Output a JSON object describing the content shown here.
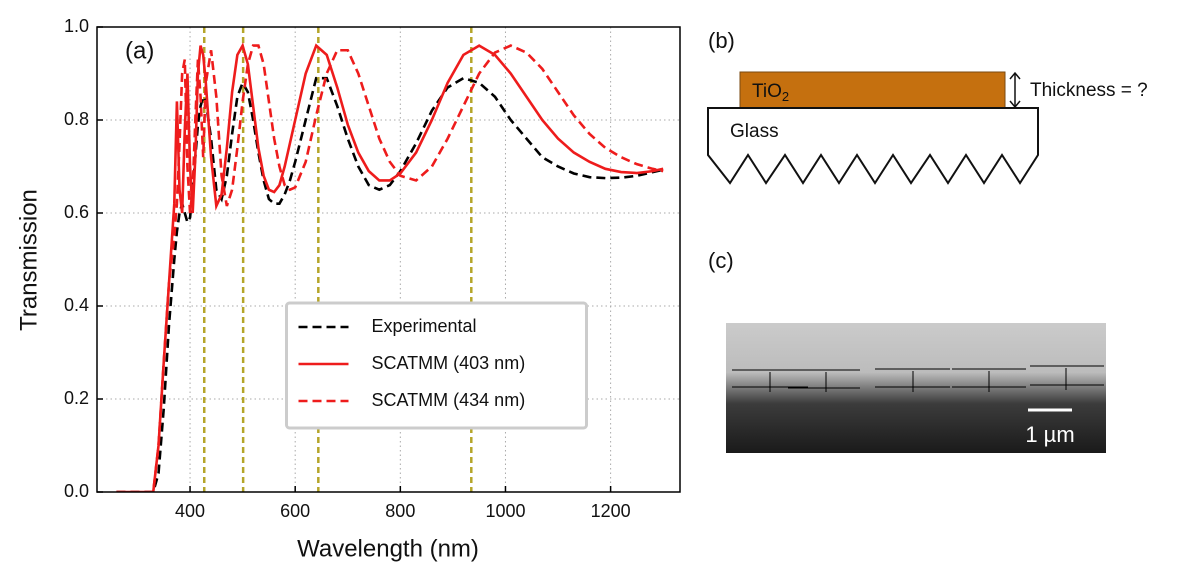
{
  "chart_data": {
    "type": "line",
    "annotation": "(a)",
    "xlabel": "Wavelength (nm)",
    "ylabel": "Transmission",
    "xlim": [
      223,
      1332
    ],
    "ylim": [
      0,
      1
    ],
    "xticks": [
      400,
      600,
      800,
      1000,
      1200
    ],
    "yticks": [
      {
        "value": 0,
        "label": "0.0"
      },
      0.2,
      0.4,
      0.6,
      0.8,
      {
        "value": 1,
        "label": "1.0"
      }
    ],
    "grid": true,
    "legend": "lower center",
    "vlines": [
      427,
      501,
      644,
      935
    ],
    "vline_color": "#b5a52a",
    "x": [
      260,
      300,
      330,
      340,
      350,
      360,
      370,
      375,
      380,
      385,
      390,
      395,
      400,
      405,
      410,
      415,
      420,
      425,
      430,
      440,
      450,
      460,
      470,
      480,
      490,
      500,
      510,
      520,
      530,
      540,
      550,
      560,
      570,
      580,
      590,
      600,
      620,
      640,
      660,
      680,
      700,
      720,
      740,
      760,
      780,
      800,
      830,
      860,
      890,
      920,
      950,
      980,
      1010,
      1040,
      1070,
      1100,
      1130,
      1160,
      1190,
      1220,
      1250,
      1280,
      1300
    ],
    "series": [
      {
        "name": "Experimental",
        "color": "#000000",
        "linestyle": "dashed",
        "values": [
          0,
          0,
          0,
          0.04,
          0.18,
          0.36,
          0.5,
          0.56,
          0.6,
          0.62,
          0.6,
          0.58,
          0.59,
          0.65,
          0.72,
          0.79,
          0.83,
          0.85,
          0.84,
          0.76,
          0.65,
          0.63,
          0.68,
          0.77,
          0.85,
          0.88,
          0.86,
          0.8,
          0.73,
          0.67,
          0.63,
          0.62,
          0.62,
          0.64,
          0.67,
          0.71,
          0.8,
          0.89,
          0.89,
          0.83,
          0.76,
          0.7,
          0.66,
          0.65,
          0.66,
          0.69,
          0.75,
          0.82,
          0.87,
          0.89,
          0.88,
          0.85,
          0.8,
          0.76,
          0.72,
          0.7,
          0.685,
          0.677,
          0.675,
          0.676,
          0.68,
          0.688,
          0.693
        ]
      },
      {
        "name": "SCATMM (403 nm)",
        "color": "#ee1c1c",
        "linestyle": "solid",
        "values": [
          0,
          0,
          0,
          0.1,
          0.28,
          0.45,
          0.62,
          0.84,
          0.65,
          0.6,
          0.78,
          0.9,
          0.7,
          0.6,
          0.72,
          0.9,
          0.96,
          0.94,
          0.88,
          0.72,
          0.615,
          0.64,
          0.74,
          0.86,
          0.94,
          0.96,
          0.92,
          0.83,
          0.74,
          0.68,
          0.65,
          0.645,
          0.66,
          0.7,
          0.75,
          0.8,
          0.9,
          0.96,
          0.94,
          0.87,
          0.79,
          0.73,
          0.69,
          0.67,
          0.67,
          0.685,
          0.73,
          0.8,
          0.88,
          0.94,
          0.96,
          0.94,
          0.9,
          0.85,
          0.8,
          0.76,
          0.73,
          0.71,
          0.695,
          0.688,
          0.686,
          0.69,
          0.695
        ]
      },
      {
        "name": "SCATMM (434 nm)",
        "color": "#ee1c1c",
        "linestyle": "dashed",
        "values": [
          0,
          0,
          0,
          0.1,
          0.28,
          0.45,
          0.55,
          0.62,
          0.75,
          0.9,
          0.93,
          0.7,
          0.6,
          0.65,
          0.8,
          0.93,
          0.85,
          0.72,
          0.88,
          0.95,
          0.85,
          0.68,
          0.615,
          0.65,
          0.74,
          0.84,
          0.92,
          0.96,
          0.96,
          0.92,
          0.84,
          0.76,
          0.7,
          0.66,
          0.65,
          0.655,
          0.71,
          0.81,
          0.9,
          0.95,
          0.95,
          0.9,
          0.83,
          0.76,
          0.71,
          0.68,
          0.67,
          0.7,
          0.76,
          0.83,
          0.9,
          0.945,
          0.96,
          0.945,
          0.91,
          0.86,
          0.81,
          0.77,
          0.74,
          0.72,
          0.705,
          0.695,
          0.69
        ]
      }
    ]
  },
  "panel_b": {
    "label": "(b)",
    "film": "TiO",
    "film_sub": "2",
    "substrate": "Glass",
    "thickness": "Thickness = ?"
  },
  "panel_c": {
    "label": "(c)",
    "scale_bar": "1 µm"
  }
}
